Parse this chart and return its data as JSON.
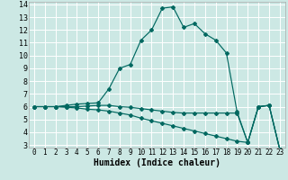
{
  "title": "",
  "xlabel": "Humidex (Indice chaleur)",
  "bg_color": "#cce8e4",
  "grid_color": "#ffffff",
  "line_color": "#006860",
  "xlim": [
    -0.5,
    23.5
  ],
  "ylim": [
    2.8,
    14.2
  ],
  "xticks": [
    0,
    1,
    2,
    3,
    4,
    5,
    6,
    7,
    8,
    9,
    10,
    11,
    12,
    13,
    14,
    15,
    16,
    17,
    18,
    19,
    20,
    21,
    22,
    23
  ],
  "yticks": [
    3,
    4,
    5,
    6,
    7,
    8,
    9,
    10,
    11,
    12,
    13,
    14
  ],
  "line1_x": [
    0,
    1,
    2,
    3,
    4,
    5,
    6,
    7,
    8,
    9,
    10,
    11,
    12,
    13,
    14,
    15,
    16,
    17,
    18,
    19,
    20,
    21,
    22,
    23
  ],
  "line1_y": [
    6.0,
    6.0,
    6.0,
    6.1,
    6.2,
    6.25,
    6.3,
    7.4,
    9.0,
    9.3,
    11.2,
    12.0,
    13.7,
    13.8,
    12.2,
    12.5,
    11.7,
    11.2,
    10.2,
    5.6,
    3.2,
    6.0,
    6.1,
    2.65
  ],
  "line2_x": [
    0,
    1,
    2,
    3,
    4,
    5,
    6,
    7,
    8,
    9,
    10,
    11,
    12,
    13,
    14,
    15,
    16,
    17,
    18,
    19,
    20,
    21,
    22,
    23
  ],
  "line2_y": [
    6.0,
    6.0,
    6.0,
    6.0,
    6.0,
    6.05,
    6.1,
    6.1,
    6.0,
    5.95,
    5.85,
    5.75,
    5.65,
    5.55,
    5.5,
    5.5,
    5.5,
    5.5,
    5.5,
    5.5,
    3.2,
    6.0,
    6.1,
    2.65
  ],
  "line3_x": [
    0,
    1,
    2,
    3,
    4,
    5,
    6,
    7,
    8,
    9,
    10,
    11,
    12,
    13,
    14,
    15,
    16,
    17,
    18,
    19,
    20,
    21,
    22,
    23
  ],
  "line3_y": [
    6.0,
    6.0,
    6.0,
    5.95,
    5.9,
    5.8,
    5.75,
    5.65,
    5.5,
    5.35,
    5.1,
    4.9,
    4.7,
    4.5,
    4.3,
    4.1,
    3.9,
    3.7,
    3.5,
    3.3,
    3.2,
    6.0,
    6.1,
    2.65
  ]
}
